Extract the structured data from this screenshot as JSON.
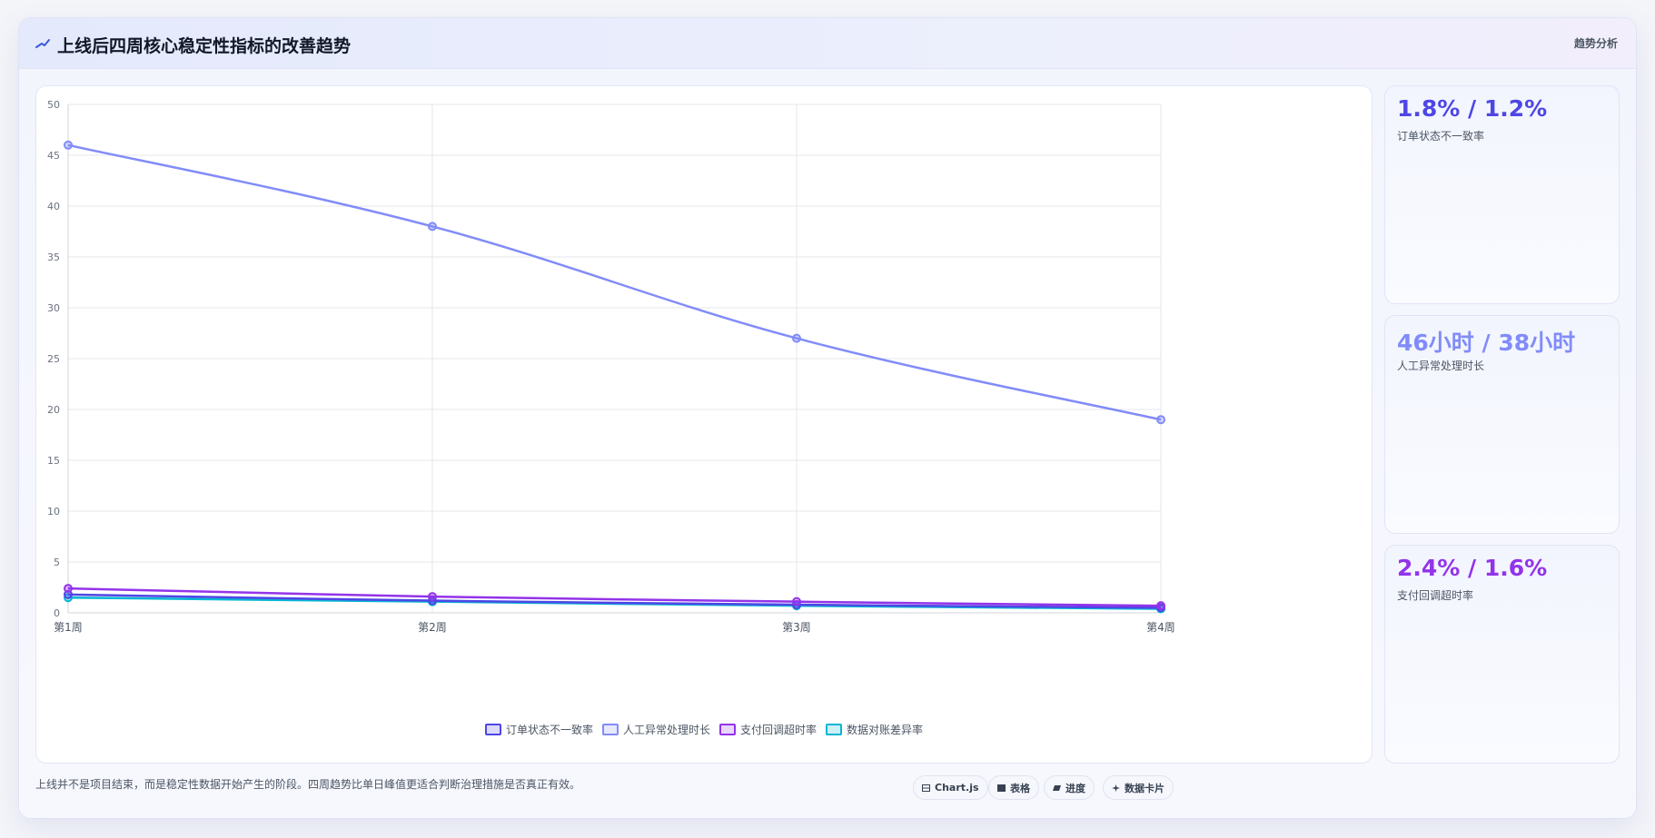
{
  "header": {
    "title": "上线后四周核心稳定性指标的改善趋势",
    "tag": "趋势分析"
  },
  "stats": [
    {
      "value": "1.8% / 1.2%",
      "label": "订单状态不一致率",
      "color": "#4f46e5"
    },
    {
      "value": "46小时 / 38小时",
      "label": "人工异常处理时长",
      "color": "#818cf8"
    },
    {
      "value": "2.4% / 1.6%",
      "label": "支付回调超时率",
      "color": "#9333ea"
    }
  ],
  "footer": {
    "note": "上线并不是项目结束，而是稳定性数据开始产生的阶段。四周趋势比单日峰值更适合判断治理措施是否真正有效。",
    "buttons": [
      {
        "label": "Chart.js",
        "icon": "chart-icon"
      },
      {
        "label": "表格",
        "icon": "table-icon"
      },
      {
        "label": "进度",
        "icon": "progress-icon"
      },
      {
        "label": "数据卡片",
        "icon": "card-icon"
      }
    ]
  },
  "chart_data": {
    "type": "line",
    "categories": [
      "第1周",
      "第2周",
      "第3周",
      "第4周"
    ],
    "ylim": [
      0,
      50
    ],
    "yticks": [
      0,
      5,
      10,
      15,
      20,
      25,
      30,
      35,
      40,
      45,
      50
    ],
    "grid": true,
    "legend_position": "bottom",
    "series": [
      {
        "name": "订单状态不一致率",
        "values": [
          1.8,
          1.2,
          0.8,
          0.5
        ],
        "color": "#4f46e5"
      },
      {
        "name": "人工异常处理时长",
        "values": [
          46,
          38,
          27,
          19
        ],
        "color": "#818cf8"
      },
      {
        "name": "支付回调超时率",
        "values": [
          2.4,
          1.6,
          1.1,
          0.7
        ],
        "color": "#9333ea"
      },
      {
        "name": "数据对账差异率",
        "values": [
          1.5,
          1.1,
          0.7,
          0.4
        ],
        "color": "#06b6d4"
      }
    ]
  }
}
